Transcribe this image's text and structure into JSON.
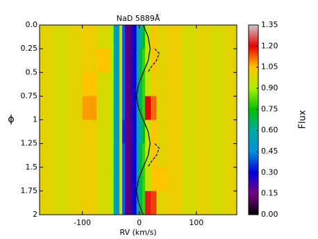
{
  "chart_data": {
    "type": "heatmap",
    "title": "NaD 5889Å",
    "x_label": "RV (km/s)",
    "y_label": "ϕ",
    "colorbar_label": "Flux",
    "xlim": [
      -175,
      171
    ],
    "xticks": [
      -100,
      0,
      100
    ],
    "ylim": [
      0,
      2
    ],
    "y_inverted": true,
    "yticks": [
      {
        "value": 0,
        "label": "0.0"
      },
      0.25,
      0.5,
      0.75,
      1,
      1.25,
      1.5,
      1.75,
      2
    ],
    "clim": [
      0,
      1.35
    ],
    "cticks": [
      {
        "value": 0,
        "label": "0.00"
      },
      {
        "value": 0.15,
        "label": "0.15"
      },
      {
        "value": 0.3,
        "label": "0.30"
      },
      {
        "value": 0.45,
        "label": "0.45"
      },
      {
        "value": 0.6,
        "label": "0.60"
      },
      {
        "value": 0.75,
        "label": "0.75"
      },
      {
        "value": 0.9,
        "label": "0.90"
      },
      {
        "value": 1.05,
        "label": "1.05"
      },
      {
        "value": 1.2,
        "label": "1.20"
      },
      {
        "value": 1.35,
        "label": "1.35"
      }
    ],
    "colormap": [
      "#000000",
      "#7a0086",
      "#0000d8",
      "#0090dd",
      "#00aaa0",
      "#00c000",
      "#a8f000",
      "#ffc400",
      "#e80000",
      "#cccccc"
    ],
    "xbins": [
      -175,
      -150,
      -125,
      -100,
      -75,
      -50,
      -45,
      -40,
      -35,
      -30,
      -25,
      -20,
      -15,
      -10,
      -5,
      0,
      5,
      10,
      20,
      30,
      50,
      75,
      100,
      125,
      150,
      171
    ],
    "ybins": [
      0,
      0.25,
      0.5,
      0.75,
      1,
      1.25,
      1.5,
      1.75,
      2
    ],
    "z": [
      [
        1.0,
        0.98,
        1.0,
        1.02,
        0.98,
        0.9,
        0.55,
        0.5,
        0.95,
        0.4,
        0.2,
        0.12,
        0.25,
        0.3,
        0.55,
        0.6,
        0.75,
        0.95,
        1.05,
        1.0,
        1.02,
        0.98,
        1.0,
        0.98,
        1.0
      ],
      [
        1.0,
        0.98,
        1.0,
        1.02,
        1.05,
        0.9,
        0.55,
        0.5,
        0.95,
        0.4,
        0.2,
        0.12,
        0.25,
        0.3,
        0.55,
        0.7,
        0.8,
        0.95,
        1.05,
        1.0,
        1.02,
        0.98,
        1.0,
        0.98,
        1.0
      ],
      [
        1.0,
        0.98,
        1.0,
        1.05,
        0.98,
        0.9,
        0.55,
        0.5,
        0.95,
        0.4,
        0.2,
        0.12,
        0.25,
        0.3,
        0.55,
        0.7,
        0.8,
        0.95,
        1.02,
        1.0,
        1.02,
        0.98,
        1.0,
        0.98,
        1.0
      ],
      [
        1.0,
        0.98,
        1.0,
        1.08,
        0.98,
        0.9,
        0.55,
        0.5,
        0.95,
        0.4,
        0.2,
        0.12,
        0.25,
        0.3,
        0.55,
        0.7,
        0.8,
        1.2,
        1.12,
        1.0,
        1.02,
        0.98,
        1.0,
        0.98,
        1.0
      ],
      [
        1.0,
        0.98,
        1.0,
        1.02,
        0.98,
        0.9,
        0.55,
        0.5,
        0.95,
        0.35,
        0.2,
        0.12,
        0.25,
        0.3,
        0.55,
        0.6,
        0.75,
        0.95,
        1.05,
        1.0,
        1.02,
        0.98,
        1.0,
        0.98,
        1.0
      ],
      [
        1.0,
        0.98,
        1.0,
        1.02,
        0.98,
        0.9,
        0.55,
        0.5,
        0.95,
        0.4,
        0.2,
        0.12,
        0.25,
        0.3,
        0.55,
        0.7,
        0.8,
        0.95,
        1.05,
        1.0,
        1.02,
        0.98,
        1.0,
        0.98,
        1.0
      ],
      [
        1.0,
        0.98,
        1.0,
        1.02,
        0.98,
        0.9,
        0.55,
        0.5,
        0.95,
        0.4,
        0.2,
        0.12,
        0.25,
        0.3,
        0.55,
        0.7,
        0.8,
        0.95,
        1.05,
        1.05,
        1.02,
        0.98,
        1.0,
        0.98,
        1.0
      ],
      [
        1.0,
        0.98,
        1.0,
        1.02,
        0.98,
        0.9,
        0.55,
        0.5,
        0.95,
        0.4,
        0.2,
        0.12,
        0.25,
        0.3,
        0.55,
        0.7,
        0.8,
        1.22,
        1.15,
        1.0,
        1.02,
        0.98,
        1.0,
        0.98,
        1.0
      ]
    ],
    "lines": [
      {
        "style": "solid",
        "color": "#000000",
        "phase": [
          0,
          0.125,
          0.25,
          0.375,
          0.5,
          0.625,
          0.75,
          0.875,
          1,
          1.125,
          1.25,
          1.375,
          1.5,
          1.625,
          1.75,
          1.875,
          2
        ],
        "rv": [
          7,
          15.5,
          19,
          15.5,
          7,
          -1.5,
          -5,
          -1.5,
          7,
          15.5,
          19,
          15.5,
          7,
          -1.5,
          -5,
          -1.5,
          7
        ]
      },
      {
        "style": "dashed",
        "color": "#000000",
        "phase": [
          0.25,
          0.3,
          0.375,
          0.45,
          0.5,
          null,
          1.25,
          1.3,
          1.375,
          1.45,
          1.5
        ],
        "rv": [
          27,
          35,
          30,
          20,
          15,
          null,
          27,
          35,
          30,
          20,
          15
        ]
      }
    ]
  }
}
